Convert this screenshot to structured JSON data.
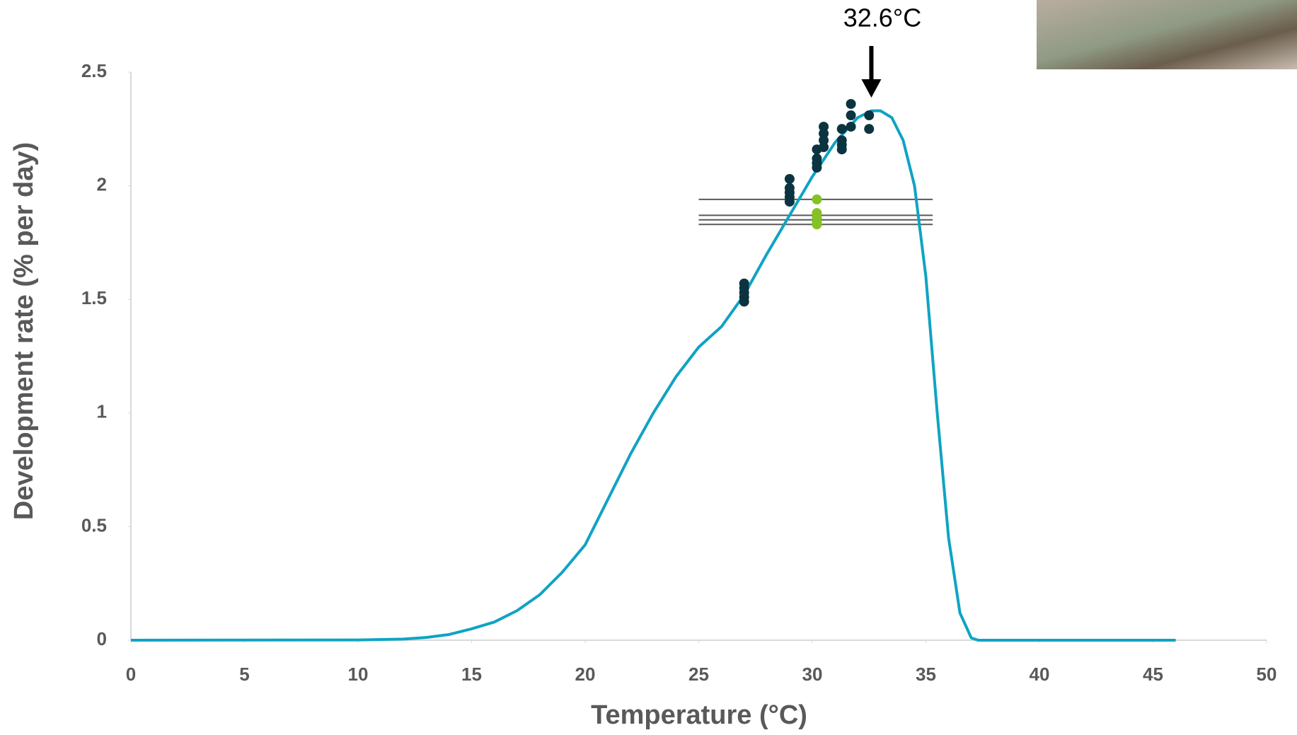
{
  "chart_data": {
    "type": "line",
    "xlabel": "Temperature (°C)",
    "ylabel": "Development rate (% per day)",
    "xlim": [
      0,
      50
    ],
    "ylim": [
      0,
      2.5
    ],
    "xticks": [
      0,
      5,
      10,
      15,
      20,
      25,
      30,
      35,
      40,
      45,
      50
    ],
    "yticks": [
      0,
      0.5,
      1,
      1.5,
      2,
      2.5
    ],
    "grid": false,
    "annotation": {
      "text": "32.6°C",
      "x": 32.6
    },
    "series": [
      {
        "type": "line",
        "color": "#0fa3c4",
        "x": [
          0,
          10,
          12,
          13,
          14,
          15,
          16,
          17,
          18,
          19,
          20,
          21,
          22,
          23,
          24,
          25,
          26,
          27,
          28,
          29,
          30,
          31,
          32,
          32.6,
          33,
          33.5,
          34,
          34.5,
          35,
          35.5,
          36,
          36.5,
          37,
          37.3,
          46
        ],
        "values": [
          0,
          0.001,
          0.005,
          0.012,
          0.025,
          0.05,
          0.08,
          0.13,
          0.2,
          0.3,
          0.42,
          0.62,
          0.82,
          1.0,
          1.16,
          1.29,
          1.38,
          1.52,
          1.7,
          1.87,
          2.04,
          2.19,
          2.3,
          2.33,
          2.33,
          2.3,
          2.2,
          2.0,
          1.6,
          1.0,
          0.45,
          0.12,
          0.01,
          0,
          0
        ]
      },
      {
        "type": "scatter",
        "color": "#0b3440",
        "x": [
          27,
          27,
          27,
          27,
          27,
          29,
          29,
          29,
          29,
          29,
          30.2,
          30.2,
          30.2,
          30.2,
          30.5,
          30.5,
          30.5,
          30.5,
          31.3,
          31.3,
          31.3,
          31.3,
          31.7,
          31.7,
          31.7,
          32.5,
          32.5
        ],
        "values": [
          1.57,
          1.55,
          1.53,
          1.51,
          1.49,
          2.03,
          1.99,
          1.97,
          1.95,
          1.93,
          2.16,
          2.12,
          2.1,
          2.08,
          2.26,
          2.23,
          2.2,
          2.17,
          2.25,
          2.2,
          2.18,
          2.16,
          2.36,
          2.31,
          2.26,
          2.31,
          2.25
        ]
      },
      {
        "type": "scatter",
        "color": "#84c225",
        "x": [
          30.2,
          30.2,
          30.2,
          30.2,
          30.2
        ],
        "values": [
          1.94,
          1.88,
          1.86,
          1.84,
          1.83
        ]
      }
    ],
    "reference_lines": {
      "color": "#595959",
      "xmin": 25,
      "xmax": 35.3,
      "values": [
        1.94,
        1.87,
        1.85,
        1.83
      ]
    }
  }
}
